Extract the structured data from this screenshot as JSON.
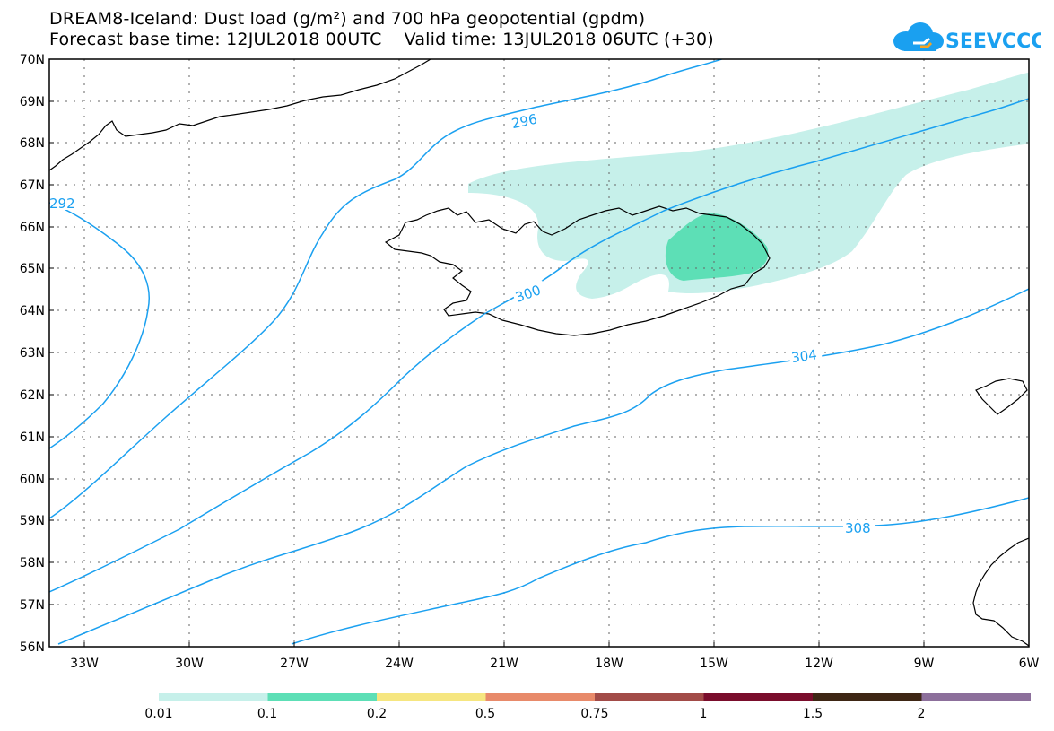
{
  "title_line1": "DREAM8-Iceland: Dust load (g/m²) and 700 hPa geopotential (gpdm)",
  "title_line2": "Forecast base time: 12JUL2018 00UTC    Valid time: 13JUL2018 06UTC (+30)",
  "logo_text": "SEEVCCC",
  "lat_labels": [
    "70N",
    "69N",
    "68N",
    "67N",
    "66N",
    "65N",
    "64N",
    "63N",
    "62N",
    "61N",
    "60N",
    "59N",
    "58N",
    "57N",
    "56N"
  ],
  "lon_labels": [
    "33W",
    "30W",
    "27W",
    "24W",
    "21W",
    "18W",
    "15W",
    "12W",
    "9W",
    "6W"
  ],
  "contour_labels": [
    "292",
    "296",
    "300",
    "304",
    "308"
  ],
  "colorbar": {
    "colors": [
      "#c6f0ea",
      "#5ddfb6",
      "#f6e680",
      "#e88a6a",
      "#a24b48",
      "#7a0d2c",
      "#3e2614",
      "#8c6f9b"
    ],
    "labels": [
      "0.01",
      "0.1",
      "0.2",
      "0.5",
      "0.75",
      "1",
      "1.5",
      "2"
    ]
  },
  "colors": {
    "contour": "#1aa0f0",
    "dust_light": "#c6f0ea",
    "dust_mid": "#5ddfb6",
    "coast": "#000000"
  }
}
